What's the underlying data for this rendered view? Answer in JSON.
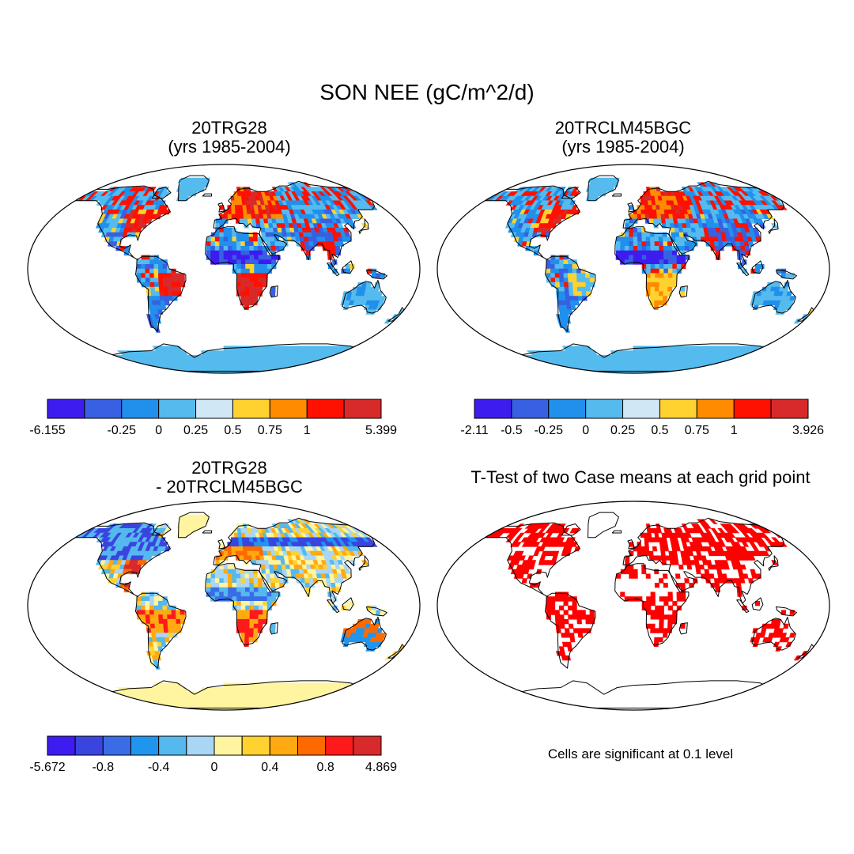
{
  "title": "SON NEE (gC/m^2/d)",
  "colors": {
    "ocean": "#ffffff",
    "coast": "#000000",
    "significant": "#ff0000",
    "seq_scale": [
      "#3d1cf0",
      "#3860e2",
      "#2090ec",
      "#55bbee",
      "#d0e8f6",
      "#ffd22f",
      "#ff8c00",
      "#ff1000",
      "#d82a2a"
    ],
    "diff_scale": [
      "#3d1cf0",
      "#3a45e0",
      "#3a6ce6",
      "#2095ee",
      "#55b8ee",
      "#a8d6f4",
      "#fff4a0",
      "#ffd22f",
      "#ffaa10",
      "#ff6a00",
      "#ff1a1a",
      "#d82a2a"
    ]
  },
  "panels": [
    {
      "id": "p1",
      "title_line1": "20TRG28",
      "title_line2": "(yrs 1985-2004)",
      "colorbar": {
        "colors": [
          "#3d1cf0",
          "#3860e2",
          "#2090ec",
          "#55bbee",
          "#d0e8f6",
          "#ffd22f",
          "#ff8c00",
          "#ff1000",
          "#d82a2a"
        ],
        "labels": [
          "-6.155",
          "-0.25",
          "0",
          "0.25",
          "0.5",
          "0.75",
          "1",
          "5.399"
        ],
        "label_boundaries": [
          0,
          2,
          3,
          4,
          5,
          6,
          7,
          9
        ]
      }
    },
    {
      "id": "p2",
      "title_line1": "20TRCLM45BGC",
      "title_line2": "(yrs 1985-2004)",
      "colorbar": {
        "colors": [
          "#3d1cf0",
          "#3860e2",
          "#2090ec",
          "#55bbee",
          "#d0e8f6",
          "#ffd22f",
          "#ff8c00",
          "#ff1000",
          "#d82a2a"
        ],
        "labels": [
          "-2.11",
          "-0.5",
          "-0.25",
          "0",
          "0.25",
          "0.5",
          "0.75",
          "1",
          "3.926"
        ],
        "label_boundaries": [
          0,
          1,
          2,
          3,
          4,
          5,
          6,
          7,
          9
        ]
      }
    },
    {
      "id": "p3",
      "title_line1": "20TRG28",
      "title_line2": "- 20TRCLM45BGC",
      "colorbar": {
        "colors": [
          "#3d1cf0",
          "#3a45e0",
          "#3a6ce6",
          "#2095ee",
          "#55b8ee",
          "#a8d6f4",
          "#fff4a0",
          "#ffd22f",
          "#ffaa10",
          "#ff6a00",
          "#ff1a1a",
          "#d82a2a"
        ],
        "labels": [
          "-5.672",
          "-0.8",
          "-0.4",
          "0",
          "0.4",
          "0.8",
          "4.869"
        ],
        "label_boundaries": [
          0,
          2,
          4,
          6,
          8,
          10,
          12
        ]
      }
    },
    {
      "id": "p4",
      "title_line1": "T-Test of two Case means at each grid point",
      "note": "Cells are significant at 0.1 level"
    }
  ]
}
